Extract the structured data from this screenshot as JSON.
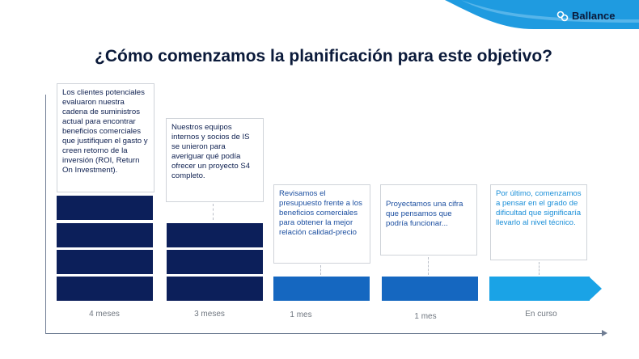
{
  "brand": {
    "logo_text": "Ballance"
  },
  "title": "¿Cómo comenzamos la planificación para este objetivo?",
  "stages": [
    {
      "text": "Los clientes potenciales evaluaron nuestra cadena de suministros actual para encontrar beneficios comerciales que justifiquen el gasto y creen retorno de la inversión (ROI, Return On Investment).",
      "duration": "4 meses",
      "color": "#0c1f5a"
    },
    {
      "text": "Nuestros equipos internos y socios de IS se unieron para averiguar qué podía ofrecer un proyecto S4 completo.",
      "duration": "3 meses",
      "color": "#0c1f5a"
    },
    {
      "text": "Revisamos el presupuesto frente a los beneficios comerciales para obtener la mejor relación calidad-precio",
      "duration": "1 mes",
      "color": "#1567c0"
    },
    {
      "text": "Proyectamos una cifra que pensamos que podría funcionar...",
      "duration": "1 mes",
      "color": "#1567c0"
    },
    {
      "text": "Por último, comenzamos a pensar en el grado de dificultad que significaría llevarlo al nivel técnico.",
      "duration": "En curso",
      "color": "#1aa3e6"
    }
  ]
}
